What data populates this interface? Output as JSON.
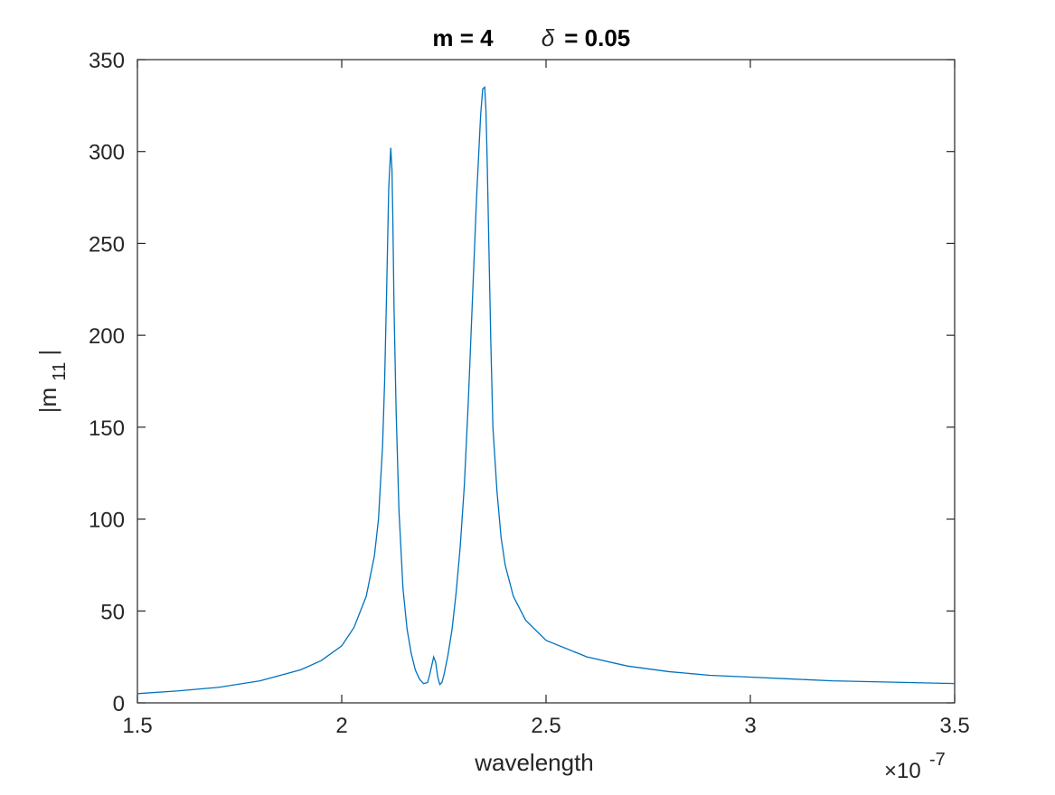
{
  "chart_data": {
    "type": "line",
    "title": {
      "m_part": "m = 4",
      "delta_symbol": "δ",
      "delta_part": " = 0.05"
    },
    "xlabel": "wavelength",
    "ylabel": {
      "prefix": "|m",
      "subscript": "11",
      "suffix": "|"
    },
    "x_exponent": {
      "base": "×10",
      "power": "-7"
    },
    "xlim": [
      1.5e-07,
      3.5e-07
    ],
    "ylim": [
      0,
      350
    ],
    "x_ticks": [
      {
        "value": 1.5e-07,
        "label": "1.5"
      },
      {
        "value": 2e-07,
        "label": "2"
      },
      {
        "value": 2.5e-07,
        "label": "2.5"
      },
      {
        "value": 3e-07,
        "label": "3"
      },
      {
        "value": 3.5e-07,
        "label": "3.5"
      }
    ],
    "y_ticks": [
      {
        "value": 0,
        "label": "0"
      },
      {
        "value": 50,
        "label": "50"
      },
      {
        "value": 100,
        "label": "100"
      },
      {
        "value": 150,
        "label": "150"
      },
      {
        "value": 200,
        "label": "200"
      },
      {
        "value": 250,
        "label": "250"
      },
      {
        "value": 300,
        "label": "300"
      },
      {
        "value": 350,
        "label": "350"
      }
    ],
    "grid": false,
    "box": true,
    "series": [
      {
        "color": "#0072bd",
        "x": [
          1.5e-07,
          1.6e-07,
          1.7e-07,
          1.8e-07,
          1.9e-07,
          1.95e-07,
          2e-07,
          2.03e-07,
          2.06e-07,
          2.08e-07,
          2.09e-07,
          2.1e-07,
          2.105e-07,
          2.11e-07,
          2.115e-07,
          2.12e-07,
          2.123e-07,
          2.125e-07,
          2.128e-07,
          2.133e-07,
          2.14e-07,
          2.15e-07,
          2.16e-07,
          2.17e-07,
          2.18e-07,
          2.19e-07,
          2.2e-07,
          2.21e-07,
          2.215e-07,
          2.22e-07,
          2.225e-07,
          2.23e-07,
          2.235e-07,
          2.24e-07,
          2.245e-07,
          2.25e-07,
          2.26e-07,
          2.27e-07,
          2.28e-07,
          2.29e-07,
          2.3e-07,
          2.31e-07,
          2.32e-07,
          2.33e-07,
          2.34e-07,
          2.345e-07,
          2.35e-07,
          2.353e-07,
          2.356e-07,
          2.36e-07,
          2.365e-07,
          2.37e-07,
          2.38e-07,
          2.39e-07,
          2.4e-07,
          2.42e-07,
          2.45e-07,
          2.5e-07,
          2.6e-07,
          2.7e-07,
          2.8e-07,
          2.9e-07,
          3e-07,
          3.1e-07,
          3.2e-07,
          3.3e-07,
          3.4e-07,
          3.5e-07
        ],
        "y": [
          5,
          6.5,
          8.5,
          12,
          18,
          23,
          31,
          41,
          58,
          80,
          100,
          140,
          175,
          225,
          280,
          302,
          290,
          265,
          215,
          160,
          105,
          62,
          40,
          27,
          18,
          13,
          10.5,
          11,
          15,
          20,
          25,
          22,
          14,
          10,
          11,
          15,
          26,
          40,
          60,
          85,
          118,
          165,
          220,
          275,
          320,
          334,
          335,
          322,
          295,
          250,
          195,
          150,
          115,
          90,
          75,
          58,
          45,
          34,
          25,
          20,
          17,
          15,
          14,
          13,
          12,
          11.5,
          11,
          10.5
        ]
      }
    ]
  }
}
